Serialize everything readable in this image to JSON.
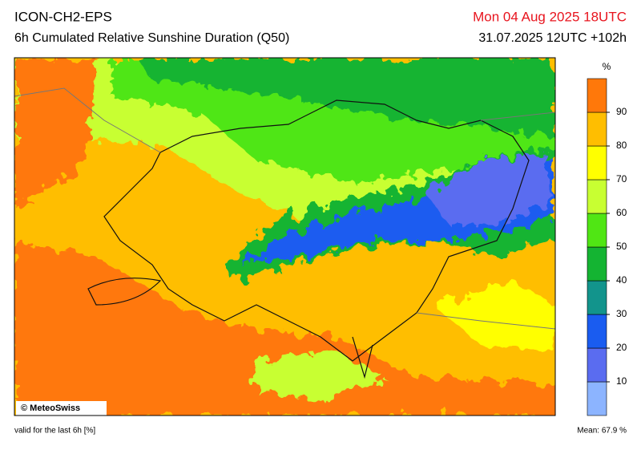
{
  "header": {
    "model": "ICON-CH2-EPS",
    "title": "6h Cumulated Relative Sunshine Duration (Q50)",
    "valid_time": "Mon 04 Aug 2025 18UTC",
    "run": "31.07.2025 12UTC +102h"
  },
  "colorbar": {
    "unit": "%",
    "range": [
      0,
      100
    ],
    "ticks": [
      10,
      20,
      30,
      40,
      50,
      60,
      70,
      80,
      90
    ],
    "colors": [
      "#8cb4ff",
      "#5a6cf0",
      "#1a5cf0",
      "#12948c",
      "#14b432",
      "#50e614",
      "#c8ff32",
      "#ffff00",
      "#ffbe00",
      "#ff780a"
    ]
  },
  "map": {
    "copyright": "© MeteoSwiss"
  },
  "footer": {
    "note": "valid for the last 6h [%]",
    "mean": "Mean:  67.9 %"
  }
}
